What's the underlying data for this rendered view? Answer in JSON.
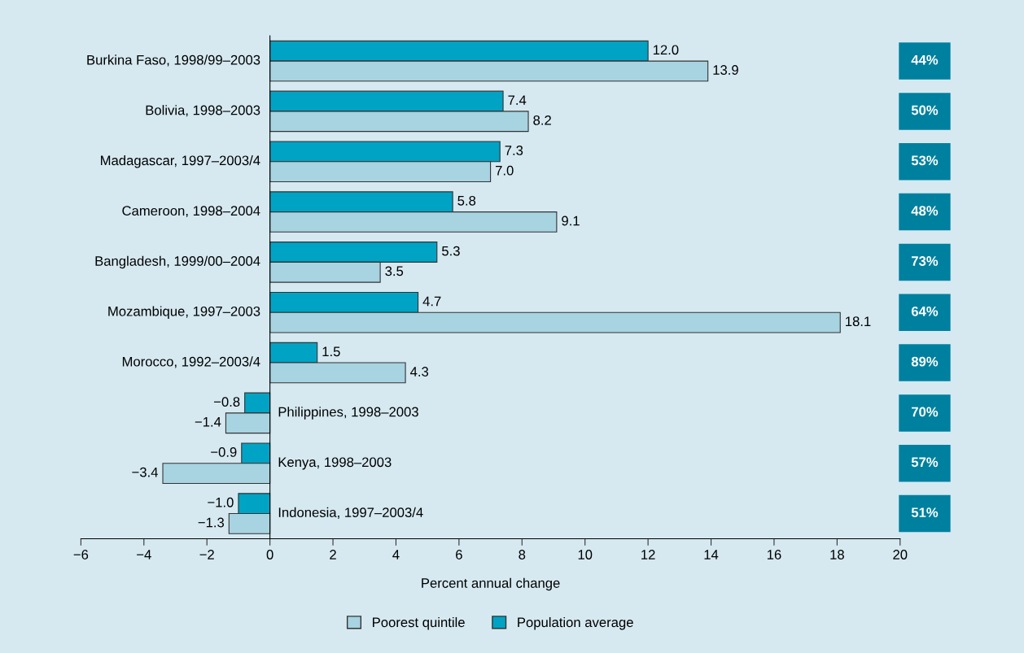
{
  "chart_data": {
    "type": "bar",
    "orientation": "horizontal",
    "xlabel": "Percent annual change",
    "categories": [
      "Burkina Faso, 1998/99–2003",
      "Bolivia, 1998–2003",
      "Madagascar, 1997–2003/4",
      "Cameroon, 1998–2004",
      "Bangladesh, 1999/00–2004",
      "Mozambique, 1997–2003",
      "Morocco, 1992–2003/4",
      "Philippines, 1998–2003",
      "Kenya, 1998–2003",
      "Indonesia, 1997–2003/4"
    ],
    "series": [
      {
        "name": "Population average",
        "color": "#00a3c4",
        "values": [
          12.0,
          7.4,
          7.3,
          5.8,
          5.3,
          4.7,
          1.5,
          -0.8,
          -0.9,
          -1.0
        ],
        "value_labels": [
          "12.0",
          "7.4",
          "7.3",
          "5.8",
          "5.3",
          "4.7",
          "1.5",
          "−0.8",
          "−0.9",
          "−1.0"
        ]
      },
      {
        "name": "Poorest quintile",
        "color": "#a8d3e1",
        "values": [
          13.9,
          8.2,
          7.0,
          9.1,
          3.5,
          18.1,
          4.3,
          -1.4,
          -3.4,
          -1.3
        ],
        "value_labels": [
          "13.9",
          "8.2",
          "7.0",
          "9.1",
          "3.5",
          "18.1",
          "4.3",
          "−1.4",
          "−3.4",
          "−1.3"
        ]
      }
    ],
    "xlim": [
      -6,
      20
    ],
    "xticks": [
      {
        "value": -6,
        "label": "−6"
      },
      {
        "value": -4,
        "label": "−4"
      },
      {
        "value": -2,
        "label": "−2"
      },
      0,
      2,
      4,
      6,
      8,
      10,
      12,
      14,
      16,
      18,
      20
    ],
    "annotations": [
      "44%",
      "50%",
      "53%",
      "48%",
      "73%",
      "64%",
      "89%",
      "70%",
      "57%",
      "51%"
    ],
    "grid": false,
    "legend": "bottom"
  }
}
